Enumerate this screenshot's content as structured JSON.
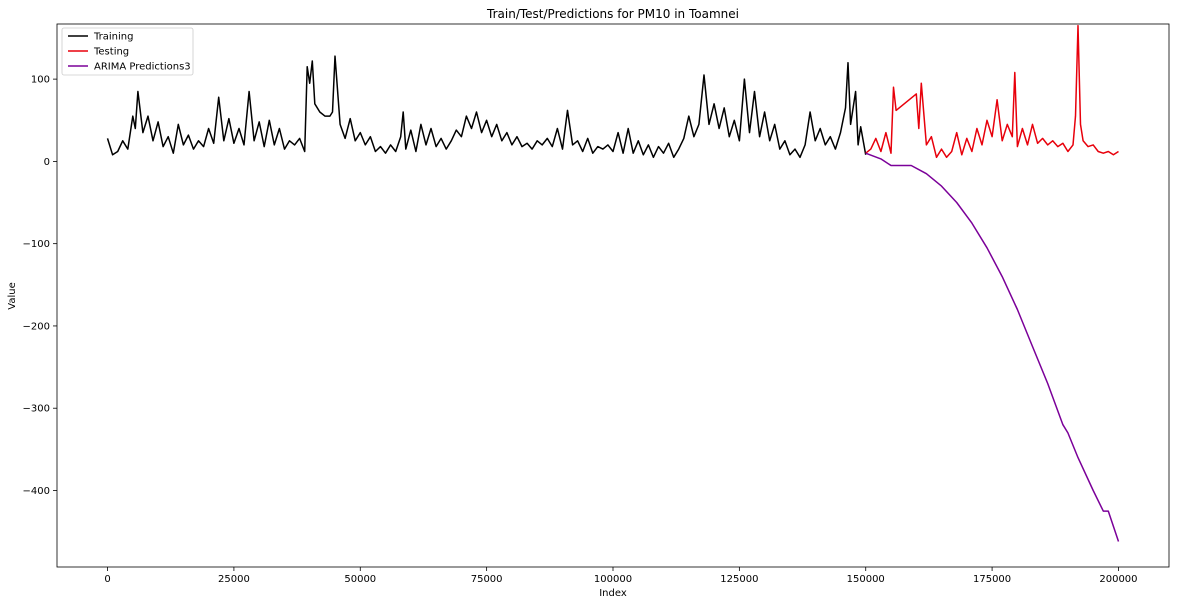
{
  "chart_data": {
    "type": "line",
    "title": "Train/Test/Predictions for PM10 in Toamnei",
    "xlabel": "Index",
    "ylabel": "Value",
    "xlim": [
      -10000,
      210000
    ],
    "ylim": [
      -493,
      167
    ],
    "x_ticks": [
      0,
      25000,
      50000,
      75000,
      100000,
      125000,
      150000,
      175000,
      200000
    ],
    "x_tick_labels": [
      "0",
      "25000",
      "50000",
      "75000",
      "100000",
      "125000",
      "150000",
      "175000",
      "200000"
    ],
    "y_ticks": [
      100,
      0,
      -100,
      -200,
      -300,
      -400
    ],
    "y_tick_labels": [
      "100",
      "0",
      "−100",
      "−200",
      "−300",
      "−400"
    ],
    "legend_position": "upper-left",
    "grid": false,
    "series": [
      {
        "name": "Training",
        "color": "#000000",
        "points": [
          [
            0,
            28
          ],
          [
            1000,
            8
          ],
          [
            2000,
            12
          ],
          [
            3000,
            25
          ],
          [
            4000,
            15
          ],
          [
            5000,
            55
          ],
          [
            5500,
            40
          ],
          [
            6000,
            85
          ],
          [
            7000,
            35
          ],
          [
            8000,
            55
          ],
          [
            9000,
            25
          ],
          [
            10000,
            48
          ],
          [
            11000,
            18
          ],
          [
            12000,
            30
          ],
          [
            13000,
            10
          ],
          [
            14000,
            45
          ],
          [
            15000,
            20
          ],
          [
            16000,
            32
          ],
          [
            17000,
            15
          ],
          [
            18000,
            25
          ],
          [
            19000,
            18
          ],
          [
            20000,
            40
          ],
          [
            21000,
            22
          ],
          [
            22000,
            78
          ],
          [
            23000,
            25
          ],
          [
            24000,
            52
          ],
          [
            25000,
            22
          ],
          [
            26000,
            40
          ],
          [
            27000,
            20
          ],
          [
            28000,
            85
          ],
          [
            29000,
            25
          ],
          [
            30000,
            48
          ],
          [
            31000,
            18
          ],
          [
            32000,
            50
          ],
          [
            33000,
            20
          ],
          [
            34000,
            40
          ],
          [
            35000,
            15
          ],
          [
            36000,
            25
          ],
          [
            37000,
            20
          ],
          [
            38000,
            28
          ],
          [
            39000,
            12
          ],
          [
            39500,
            115
          ],
          [
            40000,
            95
          ],
          [
            40500,
            122
          ],
          [
            41000,
            70
          ],
          [
            42000,
            60
          ],
          [
            43000,
            55
          ],
          [
            44000,
            55
          ],
          [
            44500,
            60
          ],
          [
            45000,
            128
          ],
          [
            46000,
            45
          ],
          [
            47000,
            28
          ],
          [
            48000,
            52
          ],
          [
            49000,
            25
          ],
          [
            50000,
            35
          ],
          [
            51000,
            20
          ],
          [
            52000,
            30
          ],
          [
            53000,
            12
          ],
          [
            54000,
            18
          ],
          [
            55000,
            10
          ],
          [
            56000,
            20
          ],
          [
            57000,
            12
          ],
          [
            58000,
            30
          ],
          [
            58500,
            60
          ],
          [
            59000,
            15
          ],
          [
            60000,
            38
          ],
          [
            61000,
            12
          ],
          [
            62000,
            45
          ],
          [
            63000,
            20
          ],
          [
            64000,
            40
          ],
          [
            65000,
            18
          ],
          [
            66000,
            28
          ],
          [
            67000,
            15
          ],
          [
            68000,
            25
          ],
          [
            69000,
            38
          ],
          [
            70000,
            30
          ],
          [
            71000,
            55
          ],
          [
            72000,
            40
          ],
          [
            73000,
            60
          ],
          [
            74000,
            35
          ],
          [
            75000,
            50
          ],
          [
            76000,
            30
          ],
          [
            77000,
            45
          ],
          [
            78000,
            25
          ],
          [
            79000,
            35
          ],
          [
            80000,
            20
          ],
          [
            81000,
            30
          ],
          [
            82000,
            18
          ],
          [
            83000,
            22
          ],
          [
            84000,
            15
          ],
          [
            85000,
            25
          ],
          [
            86000,
            20
          ],
          [
            87000,
            28
          ],
          [
            88000,
            18
          ],
          [
            89000,
            40
          ],
          [
            90000,
            15
          ],
          [
            91000,
            62
          ],
          [
            92000,
            20
          ],
          [
            93000,
            25
          ],
          [
            94000,
            12
          ],
          [
            95000,
            28
          ],
          [
            96000,
            10
          ],
          [
            97000,
            18
          ],
          [
            98000,
            15
          ],
          [
            99000,
            20
          ],
          [
            100000,
            12
          ],
          [
            101000,
            35
          ],
          [
            102000,
            10
          ],
          [
            103000,
            40
          ],
          [
            104000,
            10
          ],
          [
            105000,
            25
          ],
          [
            106000,
            8
          ],
          [
            107000,
            20
          ],
          [
            108000,
            5
          ],
          [
            109000,
            18
          ],
          [
            110000,
            10
          ],
          [
            111000,
            22
          ],
          [
            112000,
            5
          ],
          [
            113000,
            15
          ],
          [
            114000,
            28
          ],
          [
            115000,
            55
          ],
          [
            116000,
            30
          ],
          [
            117000,
            45
          ],
          [
            118000,
            105
          ],
          [
            119000,
            45
          ],
          [
            120000,
            70
          ],
          [
            121000,
            40
          ],
          [
            122000,
            65
          ],
          [
            123000,
            30
          ],
          [
            124000,
            50
          ],
          [
            125000,
            25
          ],
          [
            126000,
            100
          ],
          [
            127000,
            35
          ],
          [
            128000,
            85
          ],
          [
            129000,
            30
          ],
          [
            130000,
            60
          ],
          [
            131000,
            25
          ],
          [
            132000,
            45
          ],
          [
            133000,
            15
          ],
          [
            134000,
            25
          ],
          [
            135000,
            8
          ],
          [
            136000,
            15
          ],
          [
            137000,
            5
          ],
          [
            138000,
            20
          ],
          [
            139000,
            60
          ],
          [
            140000,
            25
          ],
          [
            141000,
            40
          ],
          [
            142000,
            20
          ],
          [
            143000,
            30
          ],
          [
            144000,
            15
          ],
          [
            145000,
            35
          ],
          [
            146000,
            65
          ],
          [
            146500,
            120
          ],
          [
            147000,
            45
          ],
          [
            148000,
            85
          ],
          [
            148500,
            20
          ],
          [
            149000,
            42
          ],
          [
            150000,
            8
          ]
        ]
      },
      {
        "name": "Testing",
        "color": "#e8000b",
        "points": [
          [
            150000,
            10
          ],
          [
            151000,
            15
          ],
          [
            152000,
            28
          ],
          [
            153000,
            12
          ],
          [
            154000,
            35
          ],
          [
            155000,
            10
          ],
          [
            155500,
            90
          ],
          [
            156000,
            62
          ],
          [
            160000,
            82
          ],
          [
            160500,
            40
          ],
          [
            161000,
            95
          ],
          [
            162000,
            20
          ],
          [
            163000,
            30
          ],
          [
            164000,
            5
          ],
          [
            165000,
            15
          ],
          [
            166000,
            5
          ],
          [
            167000,
            12
          ],
          [
            168000,
            35
          ],
          [
            169000,
            8
          ],
          [
            170000,
            28
          ],
          [
            171000,
            12
          ],
          [
            172000,
            40
          ],
          [
            173000,
            20
          ],
          [
            174000,
            50
          ],
          [
            175000,
            30
          ],
          [
            176000,
            75
          ],
          [
            177000,
            25
          ],
          [
            178000,
            45
          ],
          [
            179000,
            30
          ],
          [
            179500,
            108
          ],
          [
            180000,
            18
          ],
          [
            181000,
            40
          ],
          [
            182000,
            20
          ],
          [
            183000,
            45
          ],
          [
            184000,
            22
          ],
          [
            185000,
            28
          ],
          [
            186000,
            20
          ],
          [
            187000,
            25
          ],
          [
            188000,
            18
          ],
          [
            189000,
            22
          ],
          [
            190000,
            12
          ],
          [
            191000,
            20
          ],
          [
            191500,
            55
          ],
          [
            192000,
            165
          ],
          [
            192500,
            45
          ],
          [
            193000,
            25
          ],
          [
            194000,
            18
          ],
          [
            195000,
            20
          ],
          [
            196000,
            12
          ],
          [
            197000,
            10
          ],
          [
            198000,
            12
          ],
          [
            199000,
            8
          ],
          [
            200000,
            12
          ]
        ]
      },
      {
        "name": "ARIMA Predictions3",
        "color": "#7b0099",
        "points": [
          [
            150000,
            10
          ],
          [
            153000,
            3
          ],
          [
            155000,
            -5
          ],
          [
            159000,
            -5
          ],
          [
            162000,
            -15
          ],
          [
            165000,
            -30
          ],
          [
            168000,
            -50
          ],
          [
            171000,
            -75
          ],
          [
            174000,
            -105
          ],
          [
            177000,
            -140
          ],
          [
            180000,
            -180
          ],
          [
            183000,
            -225
          ],
          [
            186000,
            -270
          ],
          [
            189000,
            -320
          ],
          [
            190000,
            -330
          ],
          [
            192000,
            -360
          ],
          [
            195000,
            -400
          ],
          [
            197000,
            -425
          ],
          [
            198000,
            -425
          ],
          [
            200000,
            -462
          ]
        ]
      }
    ]
  }
}
